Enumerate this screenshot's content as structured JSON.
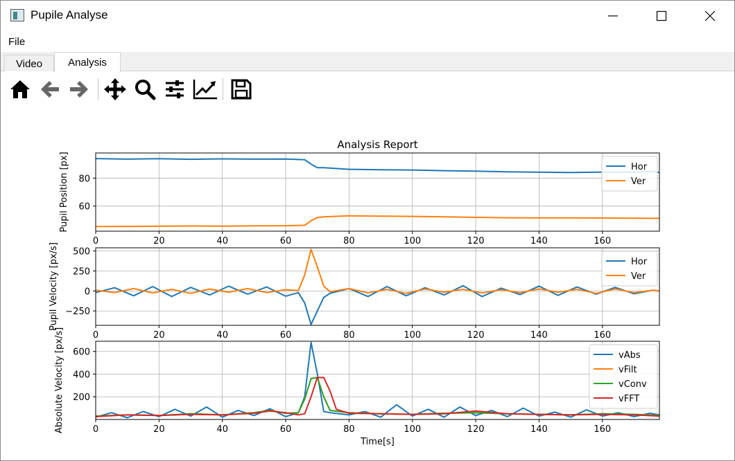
{
  "window": {
    "title": "Pupile Analyse",
    "app_icon": "app-window-icon",
    "controls": [
      "minimize-icon",
      "maximize-icon",
      "close-icon"
    ]
  },
  "menu": {
    "items": [
      "File"
    ]
  },
  "tabs": [
    {
      "label": "Video",
      "active": false
    },
    {
      "label": "Analysis",
      "active": true
    }
  ],
  "toolbar": {
    "buttons": [
      "home-icon",
      "back-icon",
      "forward-icon",
      "pan-icon",
      "zoom-icon",
      "configure-subplots-icon",
      "edit-axis-icon",
      "save-icon"
    ]
  },
  "colors": {
    "series_blue": "#1f77b4",
    "series_orange": "#ff7f0e",
    "series_green": "#2ca02c",
    "series_red": "#d62728",
    "grid": "#b0b0b0"
  },
  "chart_data": [
    {
      "type": "line",
      "title": "Analysis Report",
      "xlabel": "",
      "ylabel": "Pupil Position [px]",
      "xlim": [
        0,
        178
      ],
      "ylim": [
        42,
        98
      ],
      "xticks": [
        0,
        20,
        40,
        60,
        80,
        100,
        120,
        140,
        160
      ],
      "yticks": [
        60,
        80
      ],
      "grid": true,
      "legend": "top-right",
      "series": [
        {
          "name": "Hor",
          "color": "#1f77b4",
          "x": [
            0,
            10,
            20,
            30,
            40,
            50,
            60,
            66,
            68,
            70,
            72,
            80,
            90,
            100,
            110,
            120,
            130,
            140,
            150,
            160,
            170,
            176,
            178
          ],
          "y": [
            94,
            93.6,
            93.9,
            93.5,
            93.8,
            93.6,
            93.7,
            93.2,
            90,
            87.5,
            87.5,
            86.3,
            86.0,
            85.8,
            85.3,
            85.0,
            84.5,
            84.2,
            84.0,
            84.3,
            84.2,
            84.8,
            84.0
          ]
        },
        {
          "name": "Ver",
          "color": "#ff7f0e",
          "x": [
            0,
            10,
            20,
            30,
            40,
            50,
            60,
            66,
            68,
            70,
            72,
            80,
            90,
            100,
            110,
            120,
            130,
            140,
            150,
            160,
            170,
            178
          ],
          "y": [
            45.3,
            45.4,
            45.6,
            45.7,
            45.6,
            45.8,
            45.9,
            46.2,
            49.5,
            51.8,
            52.3,
            53.0,
            52.8,
            52.6,
            52.3,
            51.9,
            51.6,
            51.5,
            51.5,
            51.4,
            51.3,
            51.2
          ]
        }
      ]
    },
    {
      "type": "line",
      "title": "",
      "xlabel": "",
      "ylabel": "Pupil Velocity [px/s]",
      "xlim": [
        0,
        178
      ],
      "ylim": [
        -430,
        540
      ],
      "xticks": [
        0,
        20,
        40,
        60,
        80,
        100,
        120,
        140,
        160
      ],
      "yticks": [
        -250,
        0,
        250,
        500
      ],
      "ytick_labels": [
        "−250",
        "0",
        "250",
        "500"
      ],
      "grid": true,
      "legend": "top-right",
      "series": [
        {
          "name": "Hor",
          "color": "#1f77b4",
          "x": [
            0,
            6,
            12,
            18,
            24,
            30,
            36,
            42,
            48,
            54,
            60,
            64,
            66,
            68,
            70,
            72,
            74,
            80,
            86,
            92,
            98,
            104,
            110,
            116,
            122,
            128,
            134,
            140,
            146,
            152,
            158,
            164,
            170,
            176,
            178
          ],
          "y": [
            -20,
            40,
            -60,
            55,
            -70,
            45,
            -50,
            60,
            -40,
            50,
            -65,
            -20,
            -150,
            -420,
            -250,
            -80,
            -30,
            30,
            -70,
            55,
            -60,
            40,
            -50,
            65,
            -70,
            35,
            -45,
            60,
            -55,
            50,
            -40,
            45,
            -35,
            10,
            0
          ]
        },
        {
          "name": "Ver",
          "color": "#ff7f0e",
          "x": [
            0,
            6,
            12,
            18,
            24,
            30,
            36,
            42,
            48,
            54,
            60,
            64,
            66,
            68,
            70,
            72,
            74,
            80,
            86,
            92,
            98,
            104,
            110,
            116,
            122,
            128,
            134,
            140,
            146,
            152,
            158,
            164,
            170,
            176,
            178
          ],
          "y": [
            10,
            -20,
            30,
            -25,
            20,
            -30,
            25,
            -15,
            30,
            -20,
            15,
            5,
            200,
            520,
            300,
            60,
            -10,
            30,
            -25,
            20,
            -30,
            25,
            -15,
            20,
            -25,
            15,
            -20,
            25,
            -15,
            20,
            -30,
            25,
            -20,
            10,
            0
          ]
        }
      ]
    },
    {
      "type": "line",
      "title": "",
      "xlabel": "Time[s]",
      "ylabel": "Absolute Velocity [px/s]",
      "xlim": [
        0,
        178
      ],
      "ylim": [
        0,
        690
      ],
      "xticks": [
        0,
        20,
        40,
        60,
        80,
        100,
        120,
        140,
        160
      ],
      "yticks": [
        200,
        400,
        600
      ],
      "grid": true,
      "legend": "top-right",
      "series": [
        {
          "name": "vAbs",
          "color": "#1f77b4",
          "x": [
            0,
            5,
            10,
            15,
            20,
            25,
            30,
            35,
            40,
            45,
            50,
            55,
            60,
            64,
            66,
            68,
            70,
            72,
            74,
            80,
            85,
            90,
            95,
            100,
            105,
            110,
            115,
            120,
            125,
            130,
            135,
            140,
            145,
            150,
            155,
            160,
            165,
            170,
            175,
            178
          ],
          "y": [
            20,
            60,
            15,
            70,
            25,
            90,
            30,
            110,
            20,
            80,
            35,
            95,
            25,
            60,
            200,
            680,
            400,
            70,
            60,
            40,
            70,
            20,
            130,
            30,
            90,
            20,
            110,
            35,
            80,
            25,
            100,
            30,
            65,
            20,
            85,
            30,
            60,
            25,
            55,
            40
          ]
        },
        {
          "name": "vFilt",
          "color": "#ff7f0e",
          "x": [
            0,
            10,
            20,
            30,
            40,
            50,
            55,
            60,
            64,
            66,
            68,
            70,
            72,
            74,
            80,
            90,
            100,
            110,
            120,
            130,
            140,
            150,
            160,
            170,
            178
          ],
          "y": [
            30,
            40,
            35,
            50,
            40,
            60,
            80,
            55,
            60,
            180,
            360,
            370,
            200,
            80,
            60,
            50,
            45,
            55,
            60,
            50,
            45,
            40,
            50,
            45,
            35
          ]
        },
        {
          "name": "vConv",
          "color": "#2ca02c",
          "x": [
            0,
            10,
            20,
            30,
            40,
            50,
            55,
            60,
            64,
            66,
            68,
            70,
            72,
            74,
            80,
            90,
            100,
            110,
            120,
            130,
            140,
            150,
            160,
            170,
            178
          ],
          "y": [
            30,
            40,
            35,
            50,
            40,
            60,
            80,
            55,
            60,
            180,
            360,
            370,
            200,
            80,
            60,
            50,
            45,
            55,
            60,
            50,
            45,
            40,
            50,
            45,
            35
          ]
        },
        {
          "name": "vFFT",
          "color": "#d62728",
          "x": [
            0,
            10,
            20,
            30,
            40,
            50,
            55,
            60,
            64,
            66,
            68,
            70,
            72,
            74,
            76,
            80,
            90,
            100,
            110,
            120,
            130,
            140,
            150,
            160,
            170,
            178
          ],
          "y": [
            25,
            40,
            35,
            45,
            40,
            55,
            75,
            60,
            40,
            50,
            200,
            370,
            370,
            250,
            90,
            55,
            50,
            45,
            50,
            75,
            50,
            45,
            40,
            45,
            40,
            30
          ]
        }
      ]
    }
  ]
}
